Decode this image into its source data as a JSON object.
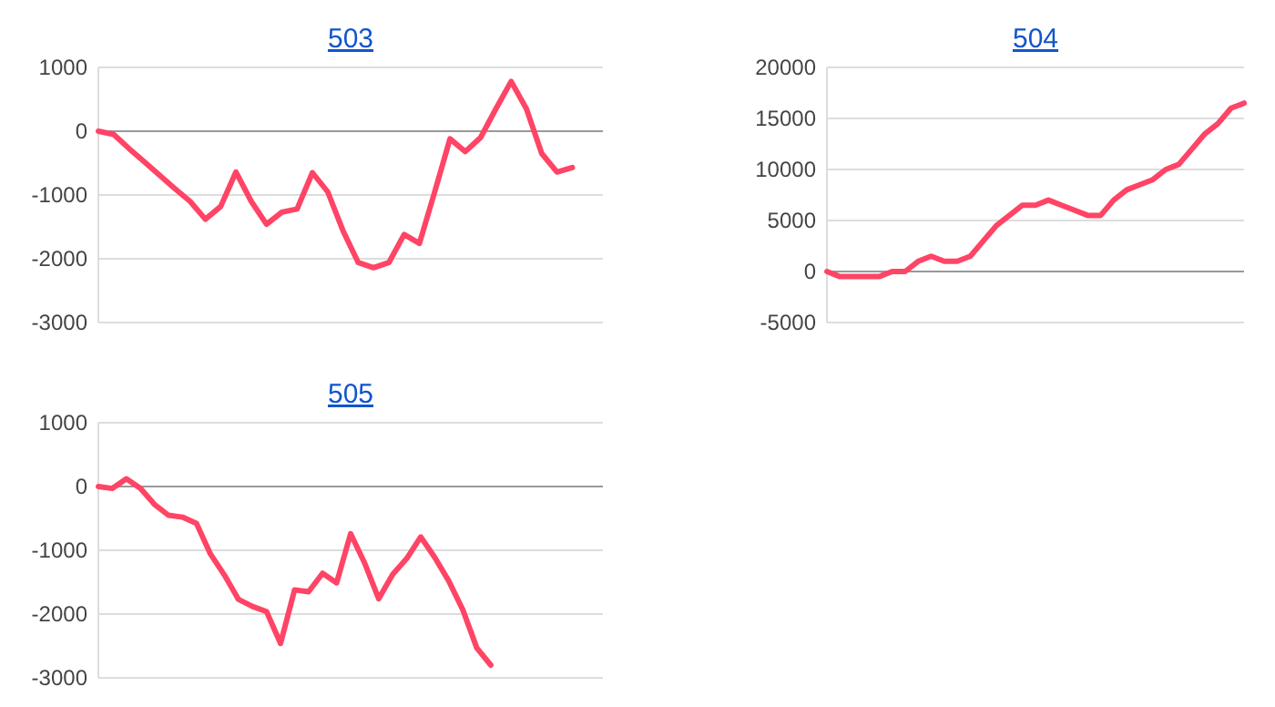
{
  "chart_data": [
    {
      "type": "line",
      "title": "503",
      "categories": [
        null,
        null,
        null,
        null,
        null,
        null,
        null,
        null,
        null,
        null,
        null,
        null,
        null,
        null,
        null,
        null,
        null,
        null,
        null,
        null,
        null,
        null,
        null,
        null,
        null,
        null,
        null,
        null,
        null,
        null,
        null,
        null,
        null,
        null
      ],
      "series": [
        {
          "color": "#ff4466",
          "values": [
            0,
            -50,
            -270,
            -480,
            -690,
            -900,
            -1100,
            -1380,
            -1180,
            -640,
            -1100,
            -1460,
            -1270,
            -1220,
            -650,
            -950,
            -1560,
            -2060,
            -2140,
            -2060,
            -1620,
            -1760,
            -950,
            -120,
            -320,
            -100,
            350,
            780,
            350,
            -350,
            -640,
            -570,
            null,
            null
          ]
        }
      ],
      "ylim": [
        -3000,
        1000
      ],
      "yticks": [
        -3000,
        -2000,
        -1000,
        0,
        1000
      ],
      "grid": "y",
      "tick_labels": "y"
    },
    {
      "type": "line",
      "title": "504",
      "categories": [
        null,
        null,
        null,
        null,
        null,
        null,
        null,
        null,
        null,
        null,
        null,
        null,
        null,
        null,
        null,
        null,
        null,
        null,
        null,
        null,
        null,
        null,
        null,
        null,
        null,
        null,
        null,
        null,
        null,
        null,
        null,
        null,
        null
      ],
      "series": [
        {
          "color": "#ff4466",
          "values": [
            0,
            -500,
            -500,
            -500,
            -500,
            0,
            0,
            1000,
            1500,
            1000,
            1000,
            1500,
            3000,
            4500,
            5500,
            6500,
            6500,
            7000,
            6500,
            6000,
            5500,
            5500,
            7000,
            8000,
            8500,
            9000,
            10000,
            10500,
            12000,
            13500,
            14500,
            16000,
            16500
          ]
        }
      ],
      "ylim": [
        -5000,
        20000
      ],
      "yticks": [
        -5000,
        0,
        5000,
        10000,
        15000,
        20000
      ],
      "grid": "y",
      "tick_labels": "y"
    },
    {
      "type": "line",
      "title": "505",
      "categories": [
        null,
        null,
        null,
        null,
        null,
        null,
        null,
        null,
        null,
        null,
        null,
        null,
        null,
        null,
        null,
        null,
        null,
        null,
        null,
        null,
        null,
        null,
        null,
        null,
        null,
        null,
        null,
        null,
        null,
        null,
        null,
        null,
        null,
        null,
        null,
        null,
        null
      ],
      "series": [
        {
          "color": "#ff4466",
          "values": [
            0,
            -30,
            120,
            -30,
            -280,
            -450,
            -480,
            -580,
            -1060,
            -1390,
            -1770,
            -1880,
            -1960,
            -2460,
            -1620,
            -1650,
            -1360,
            -1510,
            -740,
            -1200,
            -1760,
            -1380,
            -1130,
            -790,
            -1110,
            -1480,
            -1930,
            -2530,
            -2800,
            null,
            null,
            null,
            null,
            null,
            null,
            null,
            null
          ]
        }
      ],
      "ylim": [
        -3000,
        1000
      ],
      "yticks": [
        -3000,
        -2000,
        -1000,
        0,
        1000
      ],
      "grid": "y",
      "tick_labels": "y"
    }
  ]
}
